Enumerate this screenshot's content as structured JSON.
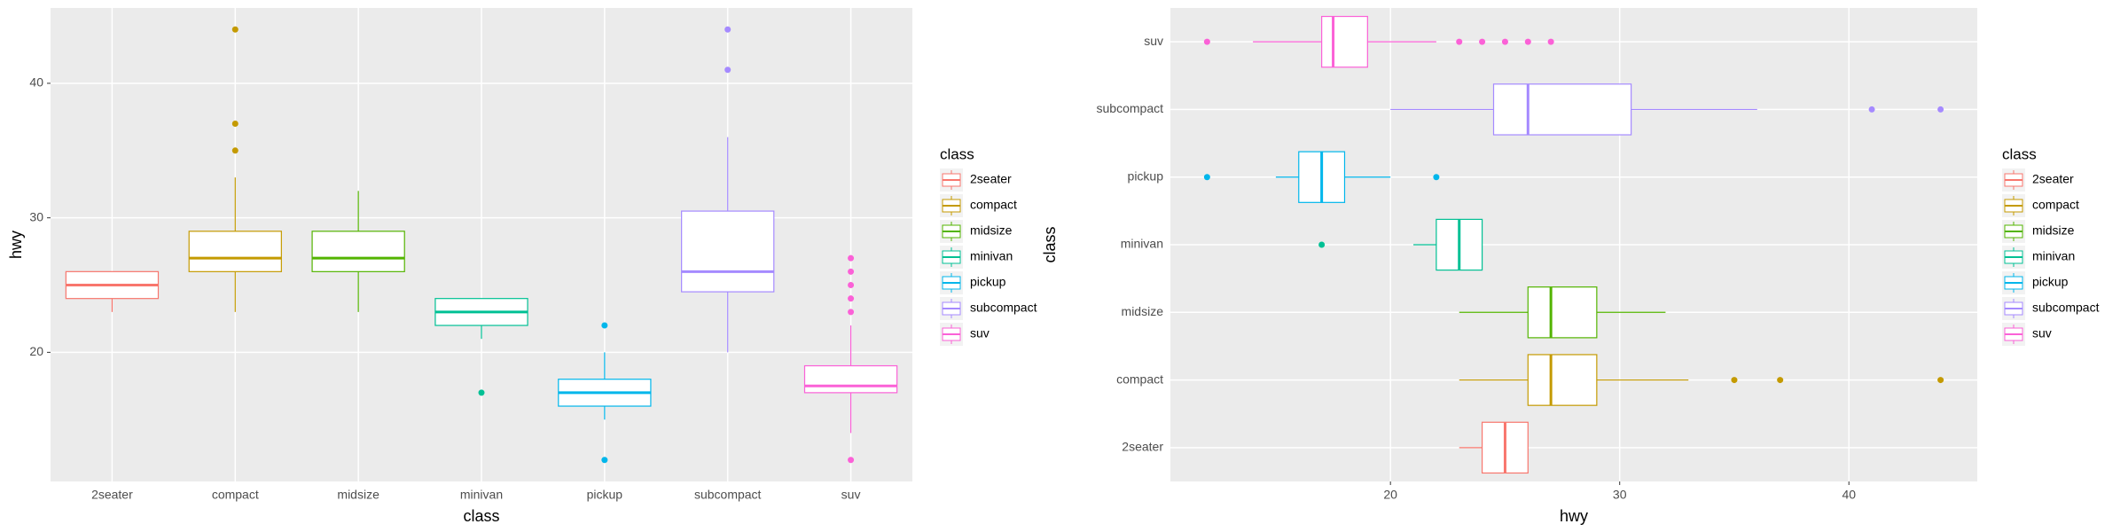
{
  "chart_data": [
    {
      "type": "boxplot",
      "orientation": "vertical",
      "x_label": "class",
      "y_label": "hwy",
      "categories": [
        "2seater",
        "compact",
        "midsize",
        "minivan",
        "pickup",
        "subcompact",
        "suv"
      ],
      "colors": [
        "#F8766D",
        "#C49A00",
        "#53B400",
        "#00C094",
        "#00B6EB",
        "#A58AFF",
        "#FB61D7"
      ],
      "whisker_low": [
        23,
        23,
        23,
        21,
        15,
        20,
        14
      ],
      "q1": [
        24,
        26,
        26,
        22,
        16,
        24.5,
        17
      ],
      "median": [
        25,
        27,
        27,
        23,
        17,
        26,
        17.5
      ],
      "q3": [
        26,
        29,
        29,
        24,
        18,
        30.5,
        19
      ],
      "whisker_high": [
        26,
        33,
        32,
        24,
        20,
        36,
        22
      ],
      "outliers": [
        [],
        [
          35,
          37,
          44
        ],
        [],
        [
          17
        ],
        [
          12,
          22
        ],
        [
          41,
          44
        ],
        [
          12,
          23,
          24,
          25,
          26,
          27
        ]
      ],
      "ylim": [
        10.4,
        45.6
      ],
      "yticks": [
        20,
        30,
        40
      ],
      "grid": true,
      "legend_title": "class",
      "legend_position": "right"
    },
    {
      "type": "boxplot",
      "orientation": "horizontal",
      "x_label": "hwy",
      "y_label": "class",
      "categories": [
        "2seater",
        "compact",
        "midsize",
        "minivan",
        "pickup",
        "subcompact",
        "suv"
      ],
      "colors": [
        "#F8766D",
        "#C49A00",
        "#53B400",
        "#00C094",
        "#00B6EB",
        "#A58AFF",
        "#FB61D7"
      ],
      "whisker_low": [
        23,
        23,
        23,
        21,
        15,
        20,
        14
      ],
      "q1": [
        24,
        26,
        26,
        22,
        16,
        24.5,
        17
      ],
      "median": [
        25,
        27,
        27,
        23,
        17,
        26,
        17.5
      ],
      "q3": [
        26,
        29,
        29,
        24,
        18,
        30.5,
        19
      ],
      "whisker_high": [
        26,
        33,
        32,
        24,
        20,
        36,
        22
      ],
      "outliers": [
        [],
        [
          35,
          37,
          44
        ],
        [],
        [
          17
        ],
        [
          12,
          22
        ],
        [
          41,
          44
        ],
        [
          12,
          23,
          24,
          25,
          26,
          27
        ]
      ],
      "xlim": [
        10.4,
        45.6
      ],
      "xticks": [
        20,
        30,
        40
      ],
      "grid": true,
      "legend_title": "class",
      "legend_position": "right"
    }
  ]
}
